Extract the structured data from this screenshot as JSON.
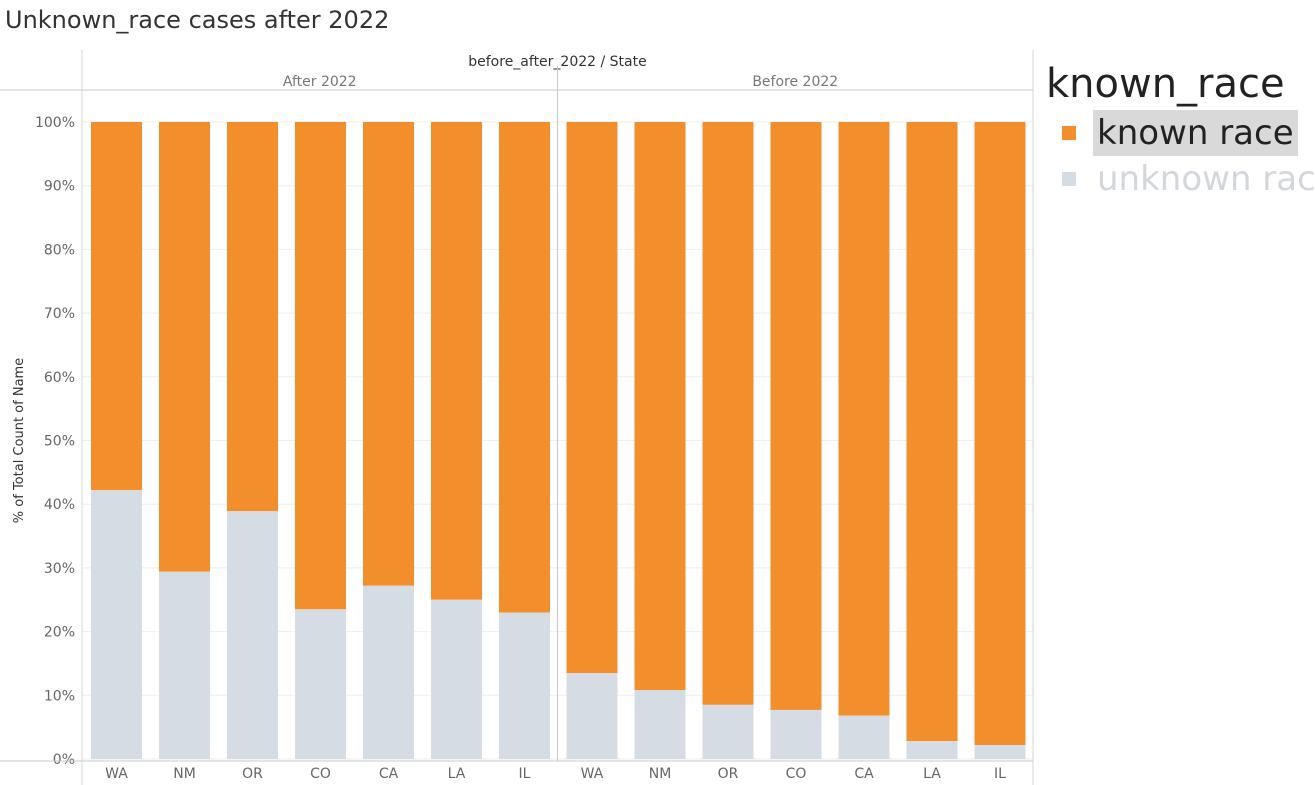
{
  "title": "Unknown_race cases after 2022",
  "chart_data": {
    "type": "bar",
    "stacked": true,
    "header_title": "before_after_2022 / State",
    "ylabel": "% of Total Count of Name",
    "ylim": [
      0,
      100
    ],
    "y_ticks": [
      "0%",
      "10%",
      "20%",
      "30%",
      "40%",
      "50%",
      "60%",
      "70%",
      "80%",
      "90%",
      "100%"
    ],
    "grid": true,
    "legend_placement": "right",
    "groups": [
      {
        "name": "After 2022",
        "categories": [
          "WA",
          "NM",
          "OR",
          "CO",
          "CA",
          "LA",
          "IL"
        ],
        "unknown": [
          42.2,
          29.4,
          38.9,
          23.5,
          27.2,
          25.0,
          23.0
        ]
      },
      {
        "name": "Before 2022",
        "categories": [
          "WA",
          "NM",
          "OR",
          "CO",
          "CA",
          "LA",
          "IL"
        ],
        "unknown": [
          13.5,
          10.8,
          8.5,
          7.7,
          6.8,
          2.8,
          2.2
        ]
      }
    ],
    "series": [
      {
        "name": "known race",
        "color": "#f28e2b"
      },
      {
        "name": "unknown race",
        "color": "#d5dce3"
      }
    ]
  },
  "legend": {
    "title": "known_race",
    "items": [
      {
        "label": "known race",
        "color": "#f28e2b",
        "selected": true
      },
      {
        "label": "unknown race",
        "color": "#d5dce3",
        "selected": false
      }
    ]
  }
}
